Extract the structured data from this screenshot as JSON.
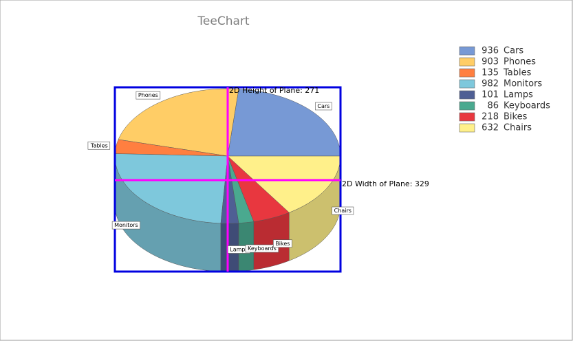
{
  "chart_data": {
    "type": "pie",
    "title": "TeeChart",
    "categories": [
      "Cars",
      "Phones",
      "Tables",
      "Monitors",
      "Lamps",
      "Keyboards",
      "Bikes",
      "Chairs"
    ],
    "values": [
      936,
      903,
      135,
      982,
      101,
      86,
      218,
      632
    ],
    "colors": [
      "#7799d5",
      "#ffcd66",
      "#ff7f40",
      "#7ec8dc",
      "#4f5f94",
      "#4aa98f",
      "#e8373f",
      "#fff08a"
    ],
    "annotations": [
      "2D Height of Plane: 271",
      "2D Width of Plane: 329"
    ],
    "legend": "right"
  }
}
